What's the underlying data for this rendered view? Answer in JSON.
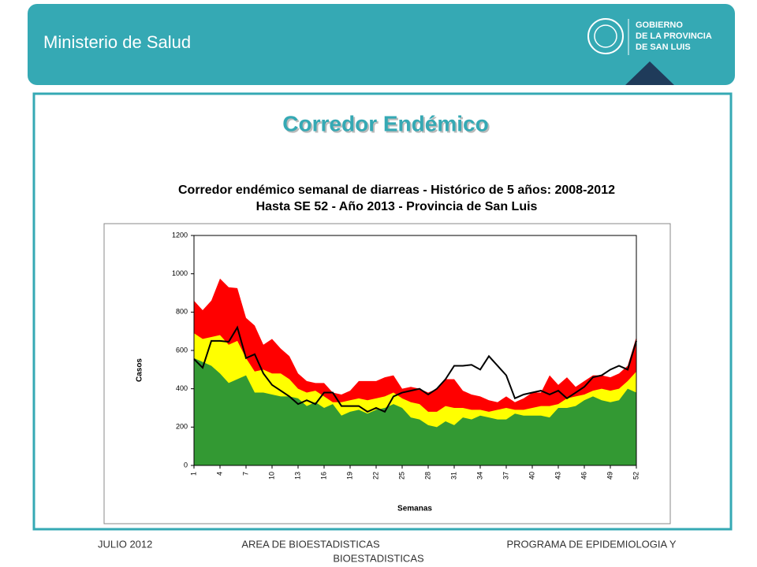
{
  "header": {
    "title": "Ministerio de Salud",
    "logo_lines": [
      "GOBIERNO",
      "DE LA PROVINCIA",
      "DE SAN LUIS"
    ]
  },
  "slide_title": "Corredor Endémico",
  "chart_data": {
    "type": "area",
    "title_lines": [
      "Corredor endémico semanal de diarreas - Histórico de 5 años: 2008-2012",
      "Hasta SE 52 - Año 2013 - Provincia de San Luis"
    ],
    "x_label": "Semanas",
    "y_label": "Casos",
    "categories": [
      1,
      null,
      null,
      4,
      null,
      null,
      7,
      null,
      null,
      10,
      null,
      null,
      13,
      null,
      null,
      16,
      null,
      null,
      19,
      null,
      null,
      22,
      null,
      null,
      25,
      null,
      null,
      28,
      null,
      null,
      31,
      null,
      null,
      34,
      null,
      null,
      37,
      null,
      null,
      40,
      null,
      null,
      43,
      null,
      null,
      46,
      null,
      null,
      49,
      null,
      null,
      52
    ],
    "ylim": [
      0,
      1200
    ],
    "yticks": [
      0,
      200,
      400,
      600,
      800,
      1000,
      1200
    ],
    "series": [
      {
        "color": "#ff0000",
        "values": [
          860,
          810,
          860,
          975,
          930,
          925,
          770,
          730,
          630,
          660,
          610,
          570,
          480,
          440,
          430,
          430,
          380,
          370,
          390,
          440,
          440,
          440,
          460,
          470,
          400,
          410,
          400,
          380,
          400,
          450,
          450,
          390,
          370,
          360,
          340,
          330,
          360,
          330,
          350,
          380,
          380,
          470,
          420,
          460,
          410,
          440,
          470,
          470,
          460,
          480,
          520,
          670
        ]
      },
      {
        "color": "#ffff00",
        "values": [
          690,
          660,
          670,
          680,
          630,
          650,
          560,
          490,
          500,
          480,
          480,
          450,
          400,
          380,
          390,
          360,
          330,
          330,
          340,
          350,
          340,
          350,
          360,
          380,
          350,
          330,
          320,
          280,
          280,
          310,
          300,
          300,
          290,
          290,
          280,
          290,
          300,
          290,
          290,
          300,
          310,
          310,
          320,
          350,
          360,
          370,
          390,
          400,
          390,
          400,
          440,
          490
        ]
      },
      {
        "color": "#339933",
        "values": [
          560,
          540,
          520,
          480,
          430,
          450,
          470,
          380,
          380,
          370,
          360,
          360,
          350,
          310,
          330,
          300,
          320,
          260,
          280,
          290,
          270,
          290,
          300,
          320,
          300,
          250,
          240,
          210,
          200,
          230,
          210,
          250,
          240,
          260,
          250,
          240,
          240,
          270,
          260,
          260,
          260,
          250,
          300,
          300,
          310,
          340,
          360,
          340,
          330,
          340,
          400,
          380
        ]
      },
      {
        "type": "line",
        "color": "#000000",
        "values": [
          555,
          510,
          650,
          650,
          645,
          720,
          560,
          580,
          480,
          420,
          390,
          360,
          320,
          340,
          320,
          380,
          380,
          310,
          310,
          310,
          280,
          300,
          280,
          360,
          380,
          390,
          400,
          370,
          400,
          450,
          520,
          520,
          525,
          500,
          570,
          520,
          470,
          350,
          370,
          380,
          390,
          370,
          390,
          350,
          380,
          410,
          460,
          470,
          500,
          520,
          500,
          650
        ]
      }
    ]
  },
  "footer": {
    "left": "JULIO 2012",
    "center": "AREA DE BIOESTADISTICAS",
    "right": "PROGRAMA  DE EPIDEMIOLOGIA Y",
    "right_cont": "BIOESTADISTICAS"
  }
}
